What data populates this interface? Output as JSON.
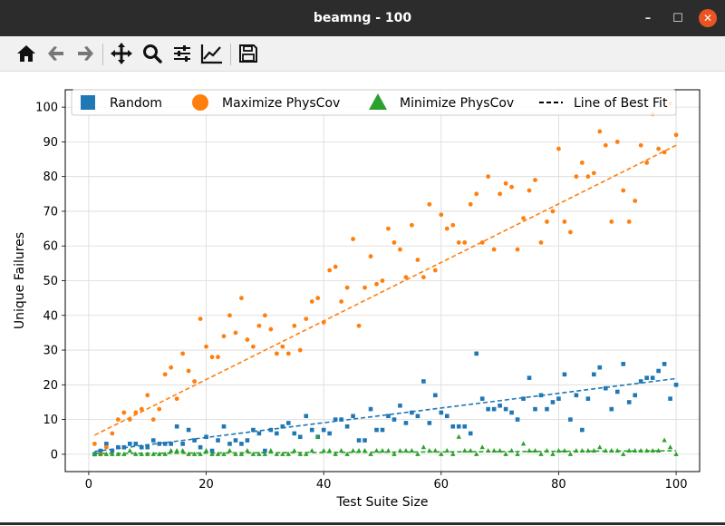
{
  "window": {
    "title": "beamng - 100",
    "buttons": {
      "minimize": "–",
      "maximize": "☐",
      "close": "✕"
    }
  },
  "toolbar": {
    "items": [
      "home-icon",
      "back-icon",
      "forward-icon",
      "pan-icon",
      "zoom-icon",
      "configure-subplots-icon",
      "edit-axis-icon",
      "save-icon"
    ]
  },
  "colors": {
    "random": "#1f77b4",
    "max": "#ff7f0e",
    "min": "#2ca02c"
  },
  "chart_data": {
    "type": "scatter",
    "title": "",
    "xlabel": "Test Suite Size",
    "ylabel": "Unique Failures",
    "xlim": [
      -4,
      104
    ],
    "ylim": [
      -5,
      105
    ],
    "xticks": [
      0,
      20,
      40,
      60,
      80,
      100
    ],
    "yticks": [
      0,
      10,
      20,
      30,
      40,
      50,
      60,
      70,
      80,
      90,
      100
    ],
    "grid": true,
    "legend_position": "top",
    "legend": [
      {
        "label": "Random",
        "marker": "square",
        "color": "#1f77b4"
      },
      {
        "label": "Maximize PhysCov",
        "marker": "circle",
        "color": "#ff7f0e"
      },
      {
        "label": "Minimize PhysCov",
        "marker": "triangle",
        "color": "#2ca02c"
      },
      {
        "label": "Line of Best Fit",
        "marker": "dashed-line",
        "color": "#000000"
      }
    ],
    "series": [
      {
        "name": "Random",
        "marker": "square",
        "color": "#1f77b4",
        "x": [
          1,
          2,
          3,
          4,
          5,
          6,
          7,
          8,
          9,
          10,
          11,
          12,
          13,
          14,
          15,
          16,
          17,
          18,
          19,
          20,
          21,
          22,
          23,
          24,
          25,
          26,
          27,
          28,
          29,
          30,
          31,
          32,
          33,
          34,
          35,
          36,
          37,
          38,
          39,
          40,
          41,
          42,
          43,
          44,
          45,
          46,
          47,
          48,
          49,
          50,
          51,
          52,
          53,
          54,
          55,
          56,
          57,
          58,
          59,
          60,
          61,
          62,
          63,
          64,
          65,
          66,
          67,
          68,
          69,
          70,
          71,
          72,
          73,
          74,
          75,
          76,
          77,
          78,
          79,
          80,
          81,
          82,
          83,
          84,
          85,
          86,
          87,
          88,
          89,
          90,
          91,
          92,
          93,
          94,
          95,
          96,
          97,
          98,
          99,
          100
        ],
        "y": [
          0,
          1,
          3,
          1,
          2,
          2,
          3,
          3,
          2,
          2,
          4,
          3,
          3,
          3,
          8,
          3,
          7,
          4,
          2,
          5,
          1,
          4,
          8,
          3,
          4,
          3,
          4,
          7,
          6,
          1,
          7,
          6,
          8,
          9,
          6,
          5,
          11,
          7,
          5,
          7,
          6,
          10,
          10,
          8,
          11,
          4,
          4,
          13,
          7,
          7,
          11,
          10,
          14,
          9,
          12,
          11,
          21,
          9,
          17,
          12,
          11,
          8,
          8,
          8,
          6,
          29,
          16,
          13,
          13,
          14,
          13,
          12,
          10,
          16,
          22,
          13,
          17,
          13,
          15,
          16,
          23,
          10,
          17,
          7,
          16,
          23,
          25,
          19,
          13,
          18,
          26,
          15,
          17,
          21,
          22,
          22,
          24,
          26,
          16,
          20
        ]
      },
      {
        "name": "Maximize PhysCov",
        "marker": "circle",
        "color": "#ff7f0e",
        "x": [
          1,
          2,
          3,
          4,
          5,
          6,
          7,
          8,
          9,
          10,
          11,
          12,
          13,
          14,
          15,
          16,
          17,
          18,
          19,
          20,
          21,
          22,
          23,
          24,
          25,
          26,
          27,
          28,
          29,
          30,
          31,
          32,
          33,
          34,
          35,
          36,
          37,
          38,
          39,
          40,
          41,
          42,
          43,
          44,
          45,
          46,
          47,
          48,
          49,
          50,
          51,
          52,
          53,
          54,
          55,
          56,
          57,
          58,
          59,
          60,
          61,
          62,
          63,
          64,
          65,
          66,
          67,
          68,
          69,
          70,
          71,
          72,
          73,
          74,
          75,
          76,
          77,
          78,
          79,
          80,
          81,
          82,
          83,
          84,
          85,
          86,
          87,
          88,
          89,
          90,
          91,
          92,
          93,
          94,
          95,
          96,
          97,
          98,
          99,
          100
        ],
        "y": [
          3,
          0,
          2,
          6,
          10,
          12,
          10,
          12,
          13,
          17,
          10,
          13,
          23,
          25,
          16,
          29,
          24,
          21,
          39,
          31,
          28,
          28,
          34,
          40,
          35,
          45,
          33,
          31,
          37,
          40,
          36,
          29,
          31,
          29,
          37,
          30,
          39,
          44,
          45,
          38,
          53,
          54,
          44,
          48,
          62,
          37,
          48,
          57,
          49,
          50,
          65,
          61,
          59,
          51,
          66,
          56,
          51,
          72,
          53,
          69,
          65,
          66,
          61,
          61,
          72,
          75,
          61,
          80,
          59,
          75,
          78,
          77,
          59,
          68,
          76,
          79,
          61,
          67,
          70,
          88,
          67,
          64,
          80,
          84,
          80,
          81,
          93,
          89,
          67,
          90,
          76,
          67,
          73,
          89,
          84,
          98,
          88,
          87,
          101,
          92
        ]
      },
      {
        "name": "Minimize PhysCov",
        "marker": "triangle",
        "color": "#2ca02c",
        "x": [
          1,
          2,
          3,
          4,
          5,
          6,
          7,
          8,
          9,
          10,
          11,
          12,
          13,
          14,
          15,
          16,
          17,
          18,
          19,
          20,
          21,
          22,
          23,
          24,
          25,
          26,
          27,
          28,
          29,
          30,
          31,
          32,
          33,
          34,
          35,
          36,
          37,
          38,
          39,
          40,
          41,
          42,
          43,
          44,
          45,
          46,
          47,
          48,
          49,
          50,
          51,
          52,
          53,
          54,
          55,
          56,
          57,
          58,
          59,
          60,
          61,
          62,
          63,
          64,
          65,
          66,
          67,
          68,
          69,
          70,
          71,
          72,
          73,
          74,
          75,
          76,
          77,
          78,
          79,
          80,
          81,
          82,
          83,
          84,
          85,
          86,
          87,
          88,
          89,
          90,
          91,
          92,
          93,
          94,
          95,
          96,
          97,
          98,
          99,
          100
        ],
        "y": [
          0,
          0,
          0,
          0,
          0,
          0,
          1,
          0,
          0,
          0,
          0,
          0,
          0,
          1,
          1,
          1,
          0,
          0,
          0,
          1,
          0,
          0,
          0,
          1,
          0,
          0,
          1,
          0,
          0,
          0,
          1,
          0,
          0,
          0,
          1,
          0,
          0,
          1,
          5,
          1,
          1,
          0,
          1,
          0,
          1,
          1,
          1,
          0,
          1,
          1,
          1,
          0,
          1,
          1,
          1,
          0,
          2,
          1,
          1,
          0,
          1,
          0,
          5,
          1,
          1,
          0,
          2,
          1,
          1,
          1,
          0,
          1,
          0,
          3,
          1,
          1,
          0,
          1,
          0,
          1,
          1,
          0,
          1,
          1,
          1,
          1,
          2,
          1,
          1,
          1,
          0,
          1,
          1,
          1,
          1,
          1,
          1,
          4,
          2,
          0
        ]
      }
    ],
    "fit_lines": [
      {
        "color": "#ff7f0e",
        "x": [
          1,
          100
        ],
        "y": [
          5.5,
          89
        ]
      },
      {
        "color": "#1f77b4",
        "x": [
          1,
          100
        ],
        "y": [
          0.8,
          21.8
        ]
      },
      {
        "color": "#2ca02c",
        "x": [
          1,
          100
        ],
        "y": [
          0.2,
          1.0
        ]
      }
    ]
  }
}
